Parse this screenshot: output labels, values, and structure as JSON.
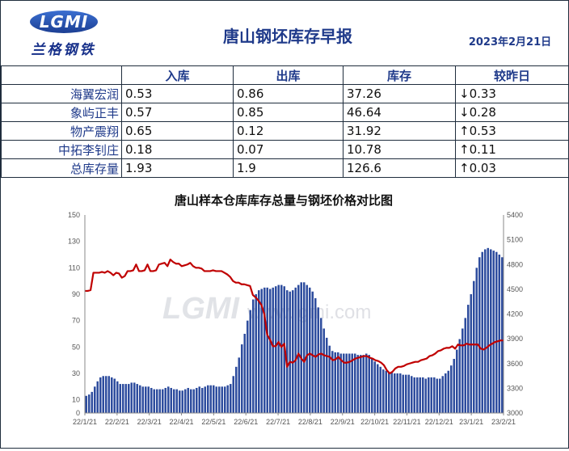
{
  "header": {
    "logo_letters": "LGMI",
    "logo_cn": "兰格钢铁",
    "title": "唐山钢坯库存早报",
    "date": "2023年2月21日"
  },
  "table": {
    "columns": [
      "",
      "入库",
      "出库",
      "库存",
      "较昨日"
    ],
    "rows": [
      {
        "name": "海翼宏润",
        "in": "0.53",
        "out": "0.86",
        "stock": "37.26",
        "change": "↓0.33",
        "dir": "down"
      },
      {
        "name": "象屿正丰",
        "in": "0.57",
        "out": "0.85",
        "stock": "46.64",
        "change": "↓0.28",
        "dir": "down"
      },
      {
        "name": "物产震翔",
        "in": "0.65",
        "out": "0.12",
        "stock": "31.92",
        "change": "↑0.53",
        "dir": "up"
      },
      {
        "name": "中拓李钊庄",
        "in": "0.18",
        "out": "0.07",
        "stock": "10.78",
        "change": "↑0.11",
        "dir": "up"
      },
      {
        "name": "总库存量",
        "in": "1.93",
        "out": "1.9",
        "stock": "126.6",
        "change": "↑0.03",
        "dir": "up"
      }
    ],
    "colors": {
      "down": "#3a8a2a",
      "up": "#d81818"
    }
  },
  "chart_data": {
    "type": "bar",
    "title": "唐山样本仓库库存总量与钢坯价格对比图",
    "watermark": "www.lgmi.com",
    "watermark_logo": "LGMI",
    "xlabel": "",
    "ylabel": "",
    "ylim": [
      0,
      150
    ],
    "y2lim": [
      3000,
      5400
    ],
    "y_ticks": [
      "0",
      "10",
      "30",
      "50",
      "70",
      "90",
      "110",
      "130",
      "150"
    ],
    "y_tick_values": [
      0,
      10,
      30,
      50,
      70,
      90,
      110,
      130,
      150
    ],
    "y2_ticks": [
      "3000",
      "3300",
      "3600",
      "3900",
      "4200",
      "4500",
      "4800",
      "5100",
      "5400"
    ],
    "y2_tick_values": [
      3000,
      3300,
      3600,
      3900,
      4200,
      4500,
      4800,
      5100,
      5400
    ],
    "x_ticks": [
      "22/1/21",
      "22/2/21",
      "22/3/21",
      "22/4/21",
      "22/5/21",
      "22/6/21",
      "22/7/21",
      "22/8/21",
      "22/9/21",
      "22/10/21",
      "22/11/21",
      "22/12/21",
      "23/1/21",
      "23/2/21"
    ],
    "series": [
      {
        "type": "bar",
        "color": "#2e4d9e",
        "values": [
          13,
          14,
          16,
          20,
          24,
          27,
          28,
          28,
          28,
          27,
          26,
          24,
          22,
          22,
          22,
          22,
          23,
          23,
          22,
          21,
          20,
          20,
          20,
          19,
          18,
          18,
          18,
          18,
          19,
          20,
          19,
          18,
          18,
          17,
          17,
          18,
          19,
          18,
          18,
          19,
          20,
          19,
          20,
          21,
          21,
          21,
          20,
          20,
          20,
          20,
          21,
          22,
          28,
          35,
          42,
          52,
          60,
          70,
          78,
          86,
          90,
          93,
          94,
          95,
          95,
          94,
          95,
          96,
          97,
          97,
          96,
          93,
          92,
          93,
          95,
          97,
          99,
          99,
          97,
          95,
          92,
          87,
          80,
          72,
          64,
          57,
          51,
          47,
          46,
          46,
          45,
          45,
          45,
          45,
          45,
          45,
          44,
          44,
          44,
          45,
          44,
          41,
          39,
          37,
          35,
          33,
          32,
          31,
          31,
          30,
          30,
          30,
          29,
          29,
          29,
          28,
          27,
          27,
          27,
          27,
          26,
          27,
          27,
          27,
          26,
          26,
          28,
          30,
          32,
          36,
          41,
          48,
          56,
          64,
          72,
          82,
          90,
          100,
          110,
          118,
          122,
          124,
          125,
          124,
          123,
          122,
          120,
          118
        ]
      },
      {
        "type": "line",
        "axis": "right",
        "color": "#c00000",
        "values": [
          4480,
          4480,
          4490,
          4700,
          4700,
          4700,
          4710,
          4700,
          4720,
          4700,
          4670,
          4700,
          4690,
          4640,
          4660,
          4720,
          4720,
          4730,
          4800,
          4720,
          4720,
          4730,
          4800,
          4720,
          4720,
          4730,
          4800,
          4810,
          4820,
          4780,
          4860,
          4830,
          4810,
          4810,
          4780,
          4790,
          4800,
          4820,
          4780,
          4760,
          4760,
          4750,
          4720,
          4720,
          4720,
          4730,
          4720,
          4720,
          4720,
          4700,
          4680,
          4650,
          4600,
          4580,
          4580,
          4560,
          4560,
          4550,
          4540,
          4430,
          4400,
          4360,
          4310,
          4200,
          3950,
          3890,
          3810,
          3810,
          3860,
          3800,
          3840,
          3560,
          3620,
          3610,
          3640,
          3720,
          3660,
          3620,
          3700,
          3720,
          3700,
          3680,
          3710,
          3720,
          3700,
          3690,
          3680,
          3640,
          3650,
          3680,
          3640,
          3610,
          3610,
          3620,
          3640,
          3660,
          3670,
          3680,
          3690,
          3690,
          3670,
          3660,
          3640,
          3630,
          3610,
          3580,
          3520,
          3480,
          3500,
          3540,
          3560,
          3560,
          3570,
          3590,
          3600,
          3610,
          3620,
          3620,
          3640,
          3650,
          3660,
          3690,
          3700,
          3720,
          3750,
          3760,
          3780,
          3790,
          3790,
          3810,
          3780,
          3830,
          3820,
          3820,
          3840,
          3830,
          3830,
          3830,
          3830,
          3780,
          3770,
          3790,
          3820,
          3840,
          3860,
          3870,
          3880,
          3880
        ]
      }
    ]
  }
}
